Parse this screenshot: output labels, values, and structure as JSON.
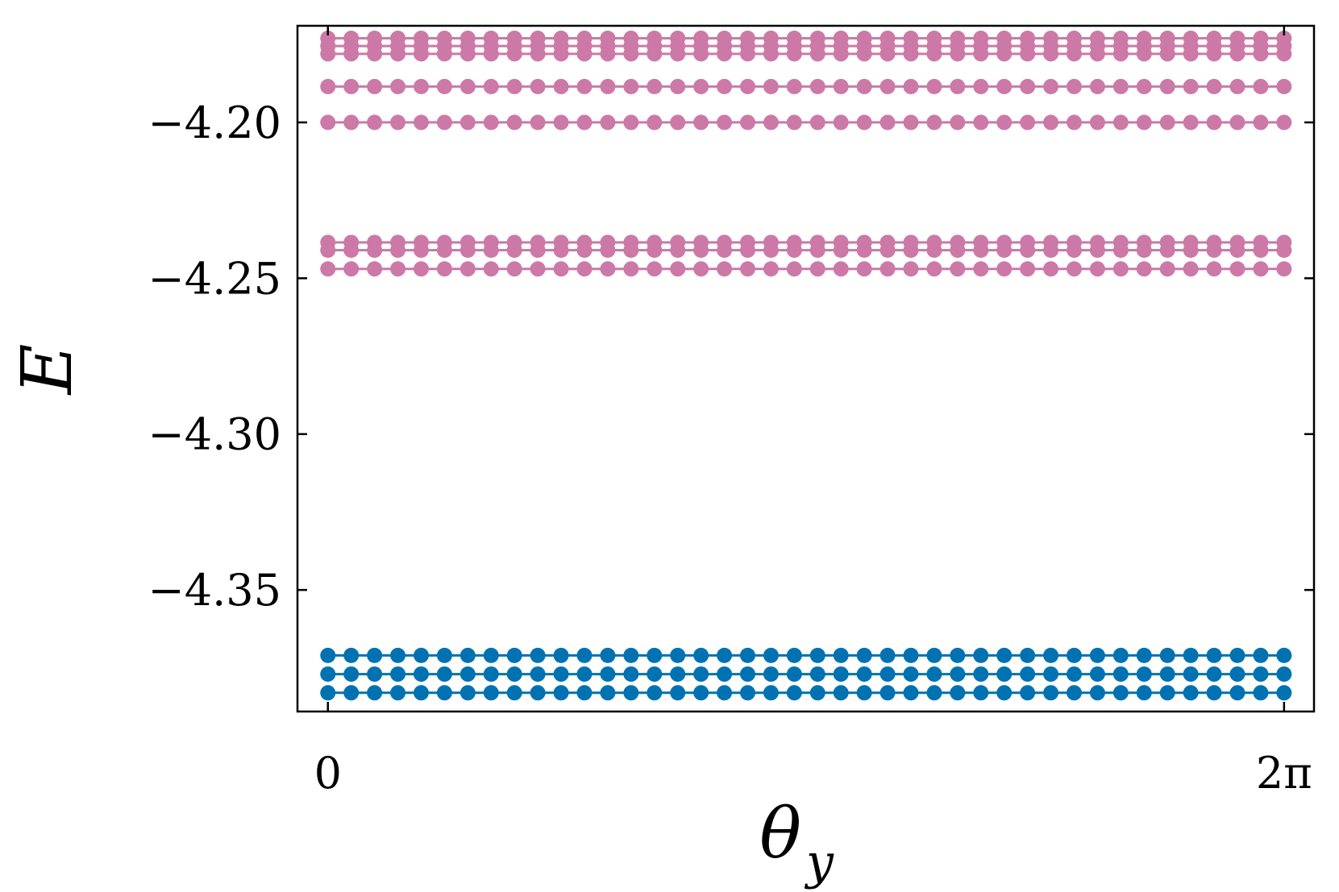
{
  "chart_data": {
    "type": "line",
    "title": "",
    "xlabel": "θ",
    "xlabel_subscript": "y",
    "ylabel": "E",
    "xlim": [
      -0.2,
      6.48
    ],
    "ylim": [
      -4.389,
      -4.169
    ],
    "x_ticks": [
      {
        "value": 0,
        "label": "0"
      },
      {
        "value": 6.2832,
        "label": "2π"
      }
    ],
    "y_ticks": [
      {
        "value": -4.2,
        "label": "−4.20"
      },
      {
        "value": -4.25,
        "label": "−4.25"
      },
      {
        "value": -4.3,
        "label": "−4.30"
      },
      {
        "value": -4.35,
        "label": "−4.35"
      }
    ],
    "x_range": [
      0,
      6.2832
    ],
    "points_per_series": 42,
    "grid": false,
    "marker": "circle",
    "colors": {
      "upper": "#cc79a7",
      "lower": "#0072b2"
    },
    "series": [
      {
        "group": "upper",
        "color": "#cc79a7",
        "values": [
          -4.173,
          -4.173
        ]
      },
      {
        "group": "upper",
        "color": "#cc79a7",
        "values": [
          -4.1755,
          -4.1755
        ]
      },
      {
        "group": "upper",
        "color": "#cc79a7",
        "values": [
          -4.178,
          -4.178
        ]
      },
      {
        "group": "upper",
        "color": "#cc79a7",
        "values": [
          -4.1885,
          -4.1885
        ]
      },
      {
        "group": "upper",
        "color": "#cc79a7",
        "values": [
          -4.2,
          -4.2
        ]
      },
      {
        "group": "upper",
        "color": "#cc79a7",
        "values": [
          -4.2385,
          -4.2385
        ]
      },
      {
        "group": "upper",
        "color": "#cc79a7",
        "values": [
          -4.241,
          -4.241
        ]
      },
      {
        "group": "upper",
        "color": "#cc79a7",
        "values": [
          -4.247,
          -4.247
        ]
      },
      {
        "group": "lower",
        "color": "#0072b2",
        "values": [
          -4.371,
          -4.371
        ]
      },
      {
        "group": "lower",
        "color": "#0072b2",
        "values": [
          -4.377,
          -4.377
        ]
      },
      {
        "group": "lower",
        "color": "#0072b2",
        "values": [
          -4.383,
          -4.383
        ]
      }
    ]
  }
}
